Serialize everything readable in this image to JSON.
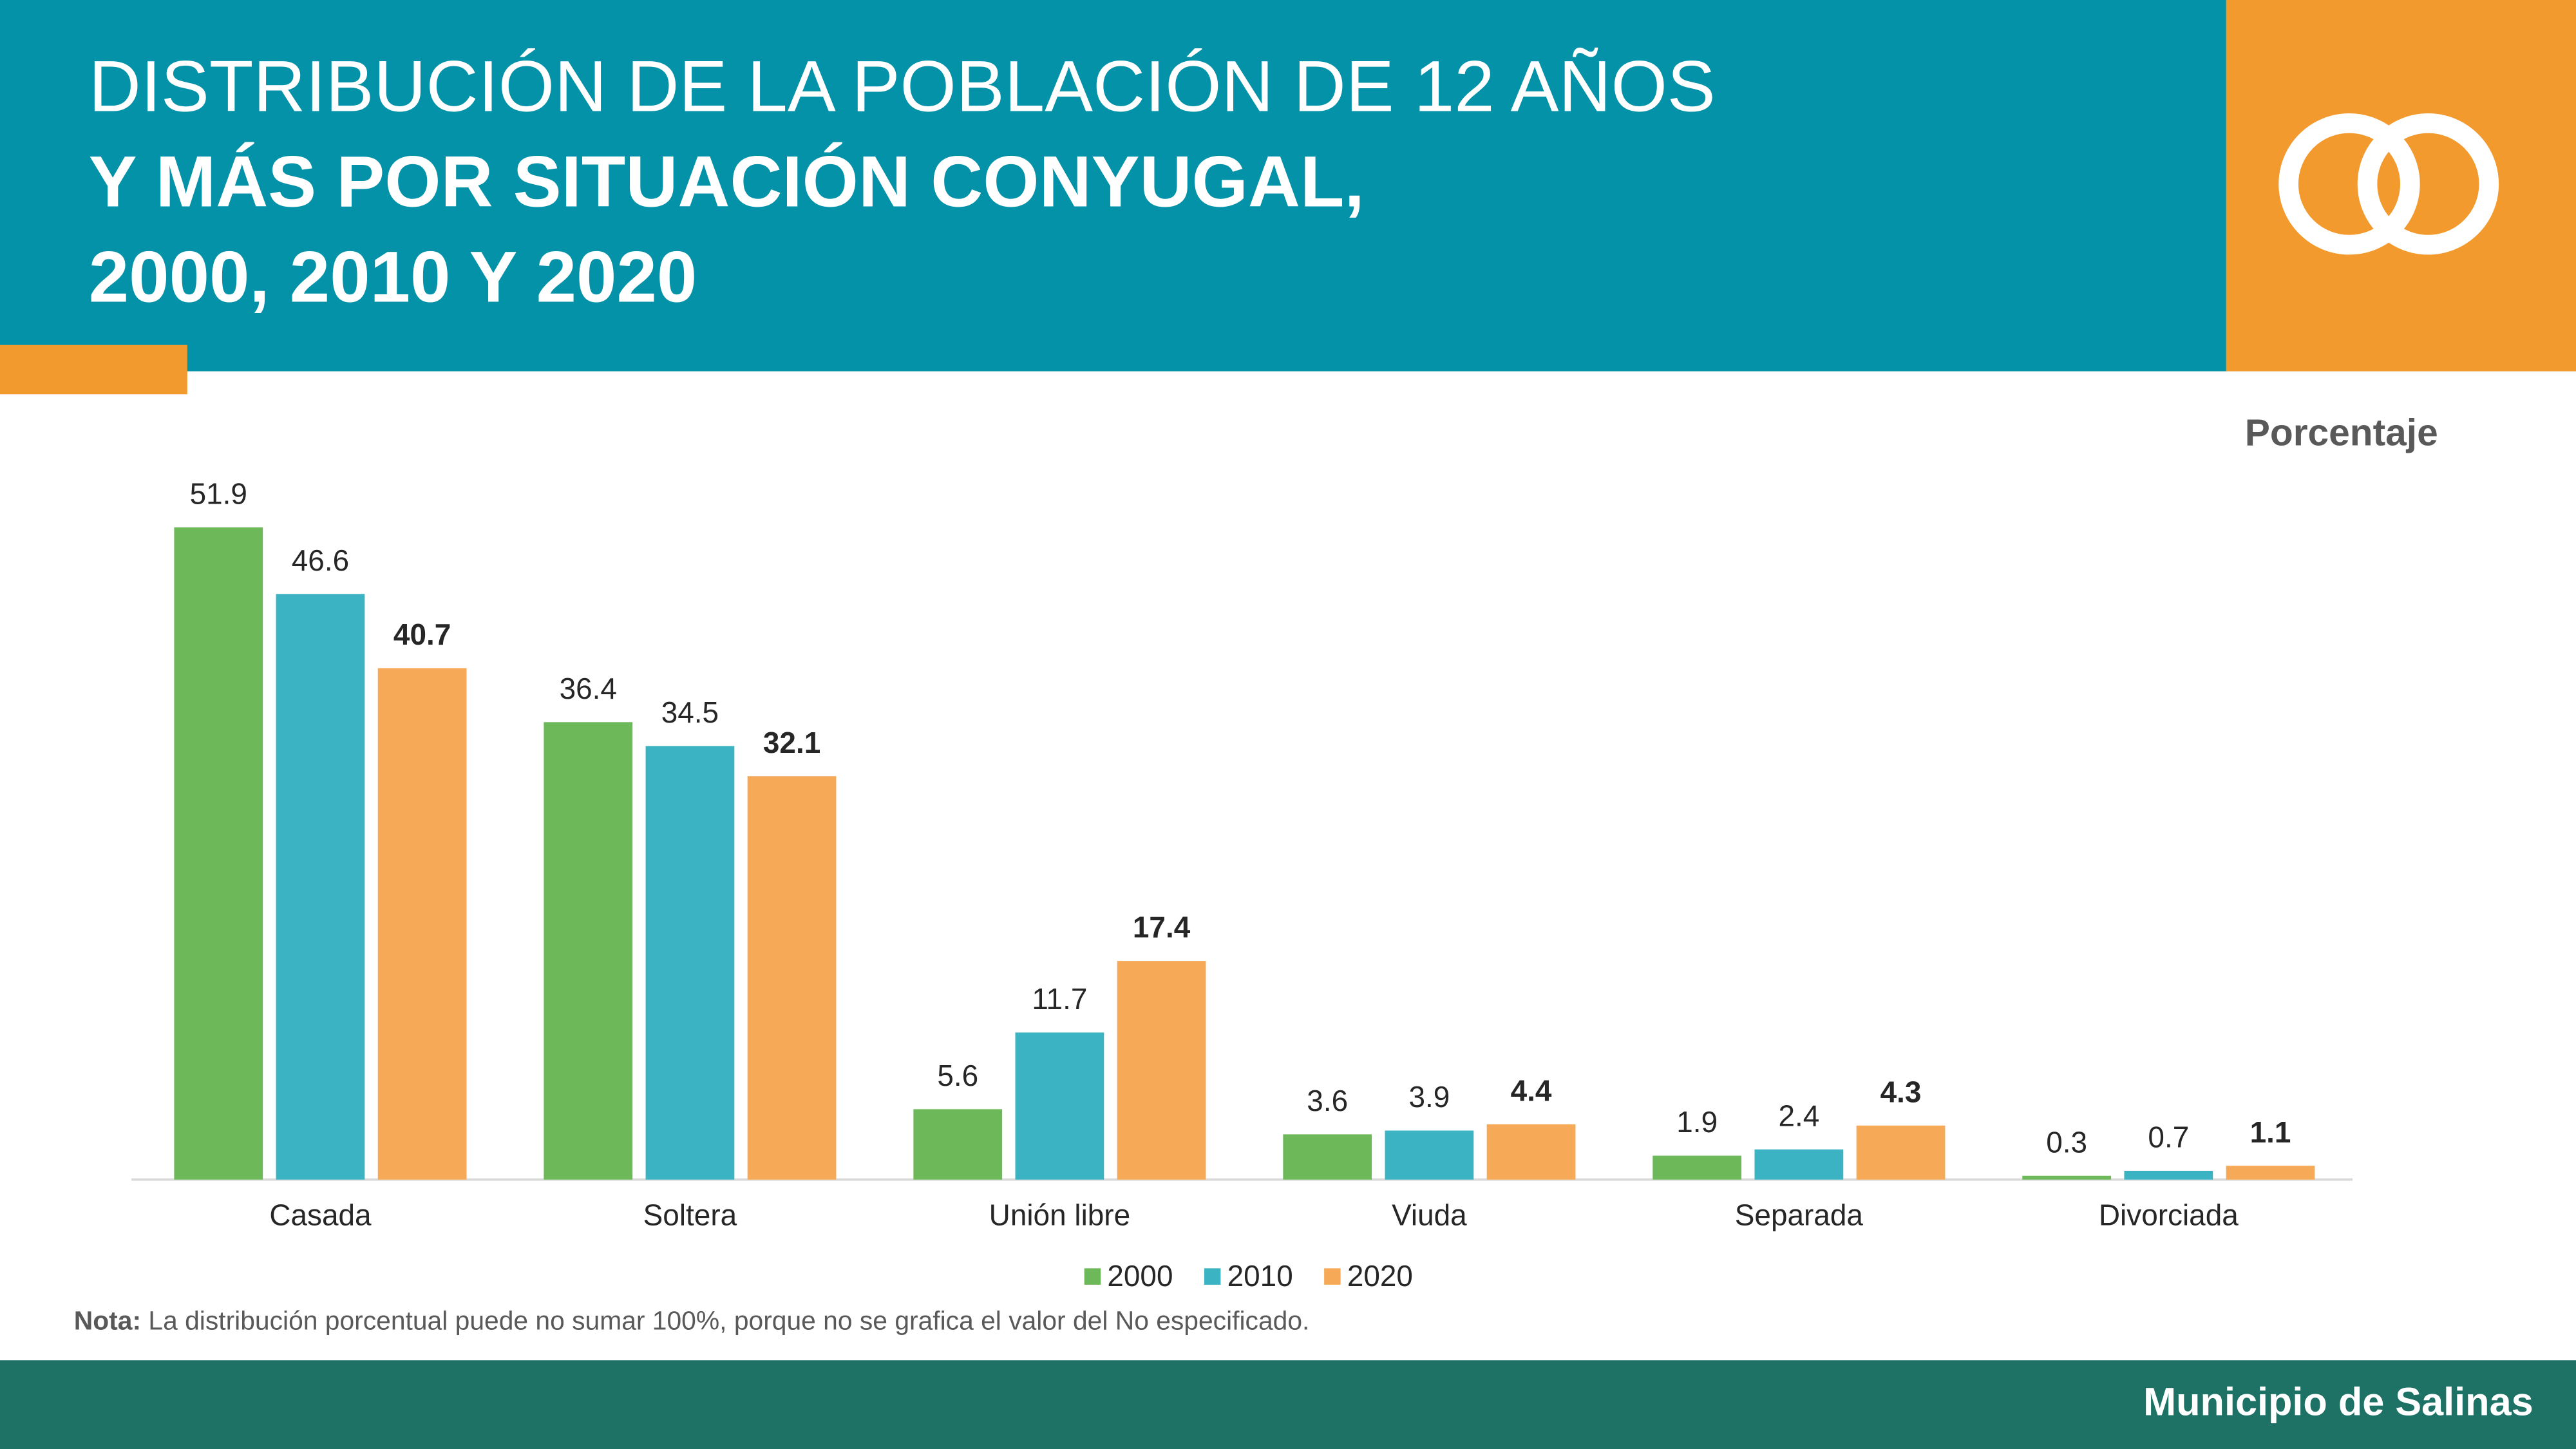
{
  "chart_data": {
    "type": "bar",
    "title": [
      "DISTRIBUCIÓN DE LA POBLACIÓN DE 12 AÑOS",
      "Y MÁS POR SITUACIÓN CONYUGAL,",
      "2000, 2010 Y 2020"
    ],
    "unit_label": "Porcentaje",
    "categories": [
      "Casada",
      "Soltera",
      "Unión libre",
      "Viuda",
      "Separada",
      "Divorciada"
    ],
    "series": [
      {
        "name": "2000",
        "color": "#6db858",
        "values": [
          51.9,
          36.4,
          5.6,
          3.6,
          1.9,
          0.3
        ]
      },
      {
        "name": "2010",
        "color": "#3bb3c3",
        "values": [
          46.6,
          34.5,
          11.7,
          3.9,
          2.4,
          0.7
        ]
      },
      {
        "name": "2020",
        "color": "#f6aa57",
        "values": [
          40.7,
          32.1,
          17.4,
          4.4,
          4.3,
          1.1
        ],
        "bold_labels": true
      }
    ],
    "legend": "bottom",
    "note": {
      "label": "Nota:",
      "text": "La distribución porcentual puede no sumar 100%, porque no se grafica el valor del No especificado."
    },
    "footer": "Municipio de Salinas"
  }
}
